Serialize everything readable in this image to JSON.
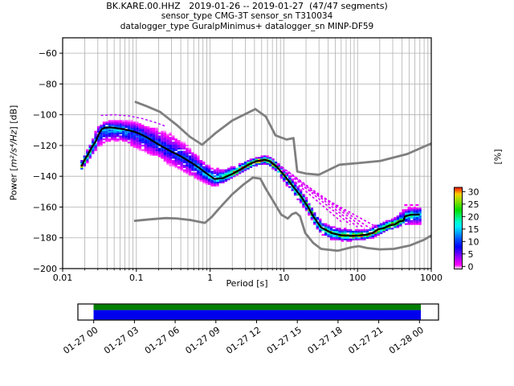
{
  "title": {
    "line1": "BK.KARE.00.HHZ   2019-01-26 -- 2019-01-27  (47/47 segments)",
    "line2": "sensor_type CMG-3T sensor_sn T310034",
    "line3": "datalogger_type GuralpMinimus+ datalogger_sn MINP-DF59"
  },
  "axes": {
    "x": {
      "label": "Period [s]",
      "scale": "log",
      "lim": [
        0.01,
        1000
      ],
      "tick_values": [
        0.01,
        0.1,
        1,
        10,
        100,
        1000
      ],
      "tick_labels": [
        "0.01",
        "0.1",
        "1",
        "10",
        "100",
        "1000"
      ]
    },
    "y": {
      "label_pre": "Power [",
      "label_math": "m²/s⁴/Hz",
      "label_post": "] [dB]",
      "lim": [
        -200,
        -50
      ],
      "tick_values": [
        -60,
        -80,
        -100,
        -120,
        -140,
        -160,
        -180,
        -200
      ],
      "tick_labels": [
        "−60",
        "−80",
        "−100",
        "−120",
        "−140",
        "−160",
        "−180",
        "−200"
      ]
    }
  },
  "colorbar": {
    "label": "[%]",
    "tick_values": [
      30,
      25,
      20,
      15,
      10,
      5,
      0
    ],
    "tick_labels": [
      "30",
      "25",
      "20",
      "15",
      "10",
      "5",
      "0"
    ],
    "range": [
      0,
      30
    ]
  },
  "timeline": {
    "tick_labels": [
      "01-27 00",
      "01-27 03",
      "01-27 06",
      "01-27 09",
      "01-27 12",
      "01-27 15",
      "01-27 18",
      "01-27 21",
      "01-28 00"
    ],
    "data_color": "#008000",
    "psd_color": "#0000ee",
    "border_color": "#000000"
  },
  "colors": {
    "grid": "#b0b0b0",
    "noise_model": "#7f7f7f",
    "mode_line": "#000000",
    "streak": "#dd00ff",
    "outline": "#bb00ff",
    "right_dash": "#ff00ff",
    "background": "#ffffff"
  },
  "chart_data": {
    "type": "heatmap",
    "subtype": "ppsd-probability-histogram",
    "title": "BK.KARE.00.HHZ   2019-01-26 -- 2019-01-27  (47/47 segments)",
    "xlabel": "Period [s]",
    "ylabel": "Power [m²/s⁴/Hz] [dB]",
    "xscale": "log",
    "xlim": [
      0.01,
      1000
    ],
    "ylim": [
      -200,
      -50
    ],
    "grid": true,
    "colorbar_label": "[%]",
    "percent_range": [
      0,
      30
    ],
    "colormap_stops": [
      [
        0.0,
        "#ffffff"
      ],
      [
        0.05,
        "#ff00ff"
      ],
      [
        0.13,
        "#aa00ff"
      ],
      [
        0.2,
        "#5500ff"
      ],
      [
        0.27,
        "#0000ff"
      ],
      [
        0.37,
        "#0055ff"
      ],
      [
        0.45,
        "#00aaff"
      ],
      [
        0.52,
        "#00eeff"
      ],
      [
        0.58,
        "#00ffcc"
      ],
      [
        0.65,
        "#00ee66"
      ],
      [
        0.72,
        "#00dd00"
      ],
      [
        0.8,
        "#66dd00"
      ],
      [
        0.87,
        "#bbdd00"
      ],
      [
        0.92,
        "#ffcc00"
      ],
      [
        0.96,
        "#ff6600"
      ],
      [
        1.0,
        "#ee1100"
      ]
    ],
    "mode_curve": [
      [
        0.018,
        -133.5
      ],
      [
        0.02,
        -129
      ],
      [
        0.022,
        -126
      ],
      [
        0.025,
        -121
      ],
      [
        0.028,
        -117.5
      ],
      [
        0.031,
        -112.5
      ],
      [
        0.034,
        -109.3
      ],
      [
        0.038,
        -108.4
      ],
      [
        0.045,
        -108.3
      ],
      [
        0.055,
        -108.8
      ],
      [
        0.07,
        -109.6
      ],
      [
        0.09,
        -110.8
      ],
      [
        0.11,
        -112.3
      ],
      [
        0.14,
        -114.8
      ],
      [
        0.18,
        -118
      ],
      [
        0.23,
        -121
      ],
      [
        0.3,
        -124
      ],
      [
        0.4,
        -127
      ],
      [
        0.55,
        -131
      ],
      [
        0.7,
        -134.3
      ],
      [
        0.9,
        -138.3
      ],
      [
        1.15,
        -141.8
      ],
      [
        1.5,
        -141.2
      ],
      [
        2,
        -138.5
      ],
      [
        2.6,
        -135.5
      ],
      [
        3.3,
        -132.5
      ],
      [
        4.2,
        -130.3
      ],
      [
        5.5,
        -129.3
      ],
      [
        6.5,
        -130.3
      ],
      [
        8,
        -133.8
      ],
      [
        10,
        -139
      ],
      [
        13,
        -146
      ],
      [
        17,
        -153
      ],
      [
        21,
        -159.5
      ],
      [
        25,
        -166
      ],
      [
        32,
        -173.3
      ],
      [
        45,
        -177
      ],
      [
        60,
        -178.3
      ],
      [
        80,
        -178.6
      ],
      [
        105,
        -178.5
      ],
      [
        130,
        -178
      ],
      [
        160,
        -176.8
      ],
      [
        190,
        -174.5
      ],
      [
        230,
        -173.6
      ],
      [
        270,
        -172
      ],
      [
        320,
        -171.3
      ],
      [
        370,
        -169.3
      ],
      [
        420,
        -168.9
      ],
      [
        440,
        -166
      ],
      [
        530,
        -165
      ],
      [
        700,
        -164.8
      ]
    ],
    "noise_models": {
      "nhnm": [
        [
          0.095,
          -91.5
        ],
        [
          0.14,
          -94.6
        ],
        [
          0.21,
          -98.2
        ],
        [
          0.35,
          -106.5
        ],
        [
          0.53,
          -114.3
        ],
        [
          0.78,
          -119.5
        ],
        [
          1.2,
          -111.7
        ],
        [
          2,
          -103.8
        ],
        [
          4.1,
          -96.3
        ],
        [
          5.7,
          -101.2
        ],
        [
          7.7,
          -113.4
        ],
        [
          10.9,
          -116.1
        ],
        [
          13.5,
          -115.2
        ],
        [
          15.2,
          -136.9
        ],
        [
          20,
          -138.3
        ],
        [
          30,
          -139
        ],
        [
          57,
          -132.5
        ],
        [
          100,
          -131.5
        ],
        [
          204,
          -130
        ],
        [
          472,
          -125.5
        ],
        [
          1000,
          -118.7
        ]
      ],
      "nlnm": [
        [
          0.093,
          -169
        ],
        [
          0.15,
          -168
        ],
        [
          0.25,
          -167.2
        ],
        [
          0.35,
          -167.4
        ],
        [
          0.55,
          -168.5
        ],
        [
          0.85,
          -170.3
        ],
        [
          1.05,
          -166.5
        ],
        [
          1.35,
          -160.5
        ],
        [
          2,
          -151.7
        ],
        [
          2.8,
          -145.6
        ],
        [
          3.8,
          -140.9
        ],
        [
          4.8,
          -141.5
        ],
        [
          5.6,
          -147.5
        ],
        [
          7.2,
          -156.2
        ],
        [
          9.2,
          -164.9
        ],
        [
          11.3,
          -167.5
        ],
        [
          12.9,
          -164.6
        ],
        [
          14.6,
          -163.7
        ],
        [
          16.6,
          -166
        ],
        [
          19.5,
          -176.8
        ],
        [
          25,
          -183.3
        ],
        [
          32,
          -187.2
        ],
        [
          54,
          -188.4
        ],
        [
          84,
          -186.1
        ],
        [
          104,
          -185.4
        ],
        [
          134,
          -186.6
        ],
        [
          200,
          -187.5
        ],
        [
          310,
          -187.2
        ],
        [
          510,
          -185
        ],
        [
          780,
          -181.5
        ],
        [
          1000,
          -178.5
        ]
      ]
    },
    "histogram_envelope_upper": [
      [
        0.018,
        -129.5
      ],
      [
        0.021,
        -124
      ],
      [
        0.025,
        -117
      ],
      [
        0.03,
        -106.5
      ],
      [
        0.04,
        -104
      ],
      [
        0.06,
        -103.8
      ],
      [
        0.09,
        -104
      ],
      [
        0.13,
        -106.5
      ],
      [
        0.2,
        -109
      ],
      [
        0.3,
        -112
      ],
      [
        0.45,
        -118
      ],
      [
        0.6,
        -124
      ],
      [
        0.8,
        -130
      ],
      [
        1.1,
        -134.5
      ],
      [
        1.5,
        -135.3
      ],
      [
        2,
        -133.8
      ],
      [
        3,
        -130.3
      ],
      [
        4,
        -128
      ],
      [
        5.5,
        -126.6
      ],
      [
        6.5,
        -127.3
      ],
      [
        8,
        -130.3
      ],
      [
        10,
        -134.5
      ],
      [
        13,
        -141
      ],
      [
        17,
        -148.5
      ],
      [
        21,
        -155
      ],
      [
        26,
        -163
      ],
      [
        33,
        -169.5
      ],
      [
        45,
        -172.5
      ],
      [
        70,
        -174
      ],
      [
        100,
        -175
      ],
      [
        140,
        -174.5
      ],
      [
        190,
        -171
      ],
      [
        240,
        -169
      ],
      [
        320,
        -167
      ],
      [
        420,
        -161.5
      ],
      [
        520,
        -160.5
      ],
      [
        720,
        -160
      ]
    ],
    "histogram_envelope_lower": [
      [
        0.018,
        -136.5
      ],
      [
        0.021,
        -132
      ],
      [
        0.025,
        -127
      ],
      [
        0.03,
        -121.5
      ],
      [
        0.04,
        -117.5
      ],
      [
        0.06,
        -117
      ],
      [
        0.09,
        -121
      ],
      [
        0.13,
        -124.5
      ],
      [
        0.2,
        -128.5
      ],
      [
        0.3,
        -133.5
      ],
      [
        0.45,
        -138
      ],
      [
        0.6,
        -141
      ],
      [
        0.8,
        -144
      ],
      [
        1.1,
        -147
      ],
      [
        1.5,
        -145
      ],
      [
        2,
        -141
      ],
      [
        3,
        -136.5
      ],
      [
        4,
        -133.8
      ],
      [
        5.5,
        -132
      ],
      [
        6.5,
        -133.5
      ],
      [
        8,
        -137
      ],
      [
        10,
        -143.5
      ],
      [
        13,
        -150.5
      ],
      [
        17,
        -158
      ],
      [
        22,
        -165
      ],
      [
        30,
        -176.5
      ],
      [
        45,
        -181.5
      ],
      [
        70,
        -182.3
      ],
      [
        100,
        -181.8
      ],
      [
        140,
        -181
      ],
      [
        200,
        -178.5
      ],
      [
        260,
        -175.5
      ],
      [
        330,
        -174
      ],
      [
        430,
        -172
      ],
      [
        720,
        -171.3
      ]
    ],
    "low_probability_streaks": [
      [
        [
          6.8,
          -130.5
        ],
        [
          60,
          -169.5
        ]
      ],
      [
        [
          8,
          -132
        ],
        [
          80,
          -171.5
        ]
      ],
      [
        [
          9.5,
          -134
        ],
        [
          100,
          -173
        ]
      ],
      [
        [
          11.5,
          -137
        ],
        [
          125,
          -174
        ]
      ],
      [
        [
          14,
          -141
        ],
        [
          155,
          -174.5
        ]
      ],
      [
        [
          17,
          -146
        ],
        [
          190,
          -173.5
        ]
      ]
    ],
    "left_outline": [
      [
        0.033,
        -100.5
      ],
      [
        0.05,
        -100
      ],
      [
        0.08,
        -100.8
      ],
      [
        0.12,
        -102.5
      ],
      [
        0.18,
        -105
      ],
      [
        0.25,
        -107.5
      ]
    ],
    "right_dashes": [
      [
        [
          430,
          -158.7
        ],
        [
          720,
          -158.7
        ]
      ],
      [
        [
          480,
          -160.3
        ],
        [
          620,
          -160.3
        ]
      ]
    ],
    "coverage": {
      "start_label": "01-27 00",
      "end_label": "01-28 00",
      "segments": "47/47"
    }
  }
}
